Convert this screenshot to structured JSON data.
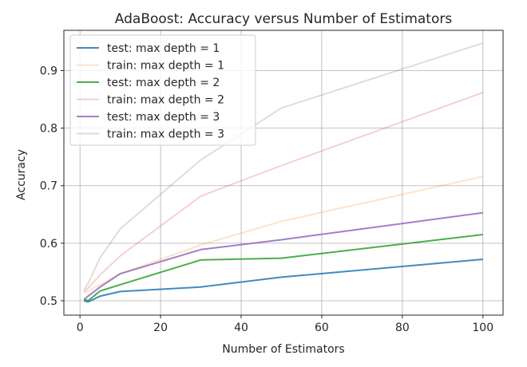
{
  "chart_data": {
    "type": "line",
    "title": "AdaBoost: Accuracy versus Number of Estimators",
    "xlabel": "Number of Estimators",
    "ylabel": "Accuracy",
    "xlim": [
      -4,
      105
    ],
    "ylim": [
      0.475,
      0.97
    ],
    "xticks": [
      0,
      20,
      40,
      60,
      80,
      100
    ],
    "yticks": [
      0.5,
      0.6,
      0.7,
      0.8,
      0.9
    ],
    "xtick_labels": [
      "0",
      "20",
      "40",
      "60",
      "80",
      "100"
    ],
    "ytick_labels": [
      "0.5",
      "0.6",
      "0.7",
      "0.8",
      "0.9"
    ],
    "grid": true,
    "legend_position": "top-left",
    "x": [
      1,
      2,
      5,
      10,
      30,
      50,
      100
    ],
    "series": [
      {
        "name": "test: max depth = 1",
        "color": "#1f77b4",
        "opacity": 0.85,
        "values": [
          0.5,
          0.498,
          0.508,
          0.516,
          0.524,
          0.541,
          0.572
        ]
      },
      {
        "name": "train: max depth = 1",
        "color": "#ff7f0e",
        "opacity": 0.22,
        "values": [
          0.515,
          0.517,
          0.528,
          0.547,
          0.597,
          0.638,
          0.716
        ]
      },
      {
        "name": "test: max depth = 2",
        "color": "#2ca02c",
        "opacity": 0.85,
        "values": [
          0.503,
          0.5,
          0.517,
          0.528,
          0.571,
          0.574,
          0.615
        ]
      },
      {
        "name": "train: max depth = 2",
        "color": "#d62728",
        "opacity": 0.22,
        "values": [
          0.516,
          0.522,
          0.545,
          0.578,
          0.682,
          0.735,
          0.862
        ]
      },
      {
        "name": "test: max depth = 3",
        "color": "#9467bd",
        "opacity": 0.85,
        "values": [
          0.502,
          0.508,
          0.524,
          0.547,
          0.589,
          0.606,
          0.653
        ]
      },
      {
        "name": "train: max depth = 3",
        "color": "#8c564b",
        "opacity": 0.22,
        "values": [
          0.519,
          0.53,
          0.575,
          0.625,
          0.745,
          0.835,
          0.948
        ]
      }
    ]
  }
}
